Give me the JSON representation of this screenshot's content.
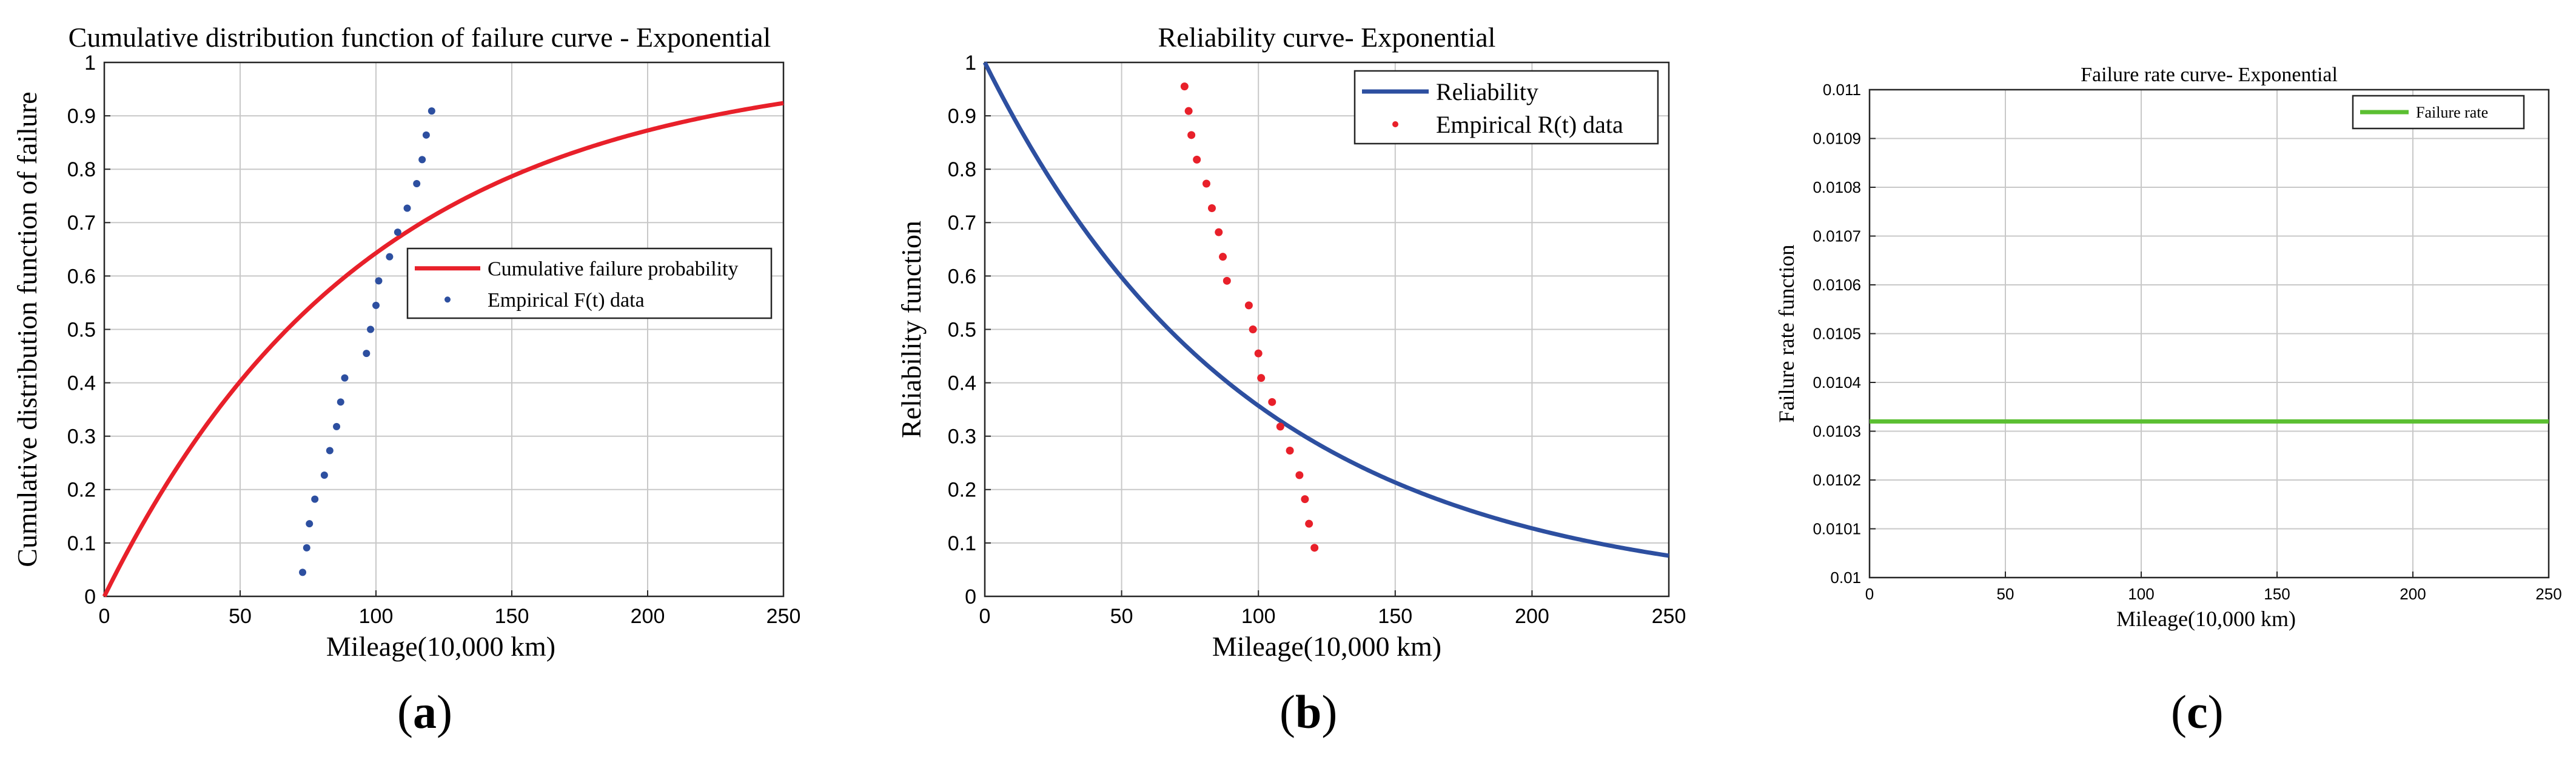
{
  "panels": [
    {
      "label_open": "(",
      "letter": "a",
      "label_close": ")"
    },
    {
      "label_open": "(",
      "letter": "b",
      "label_close": ")"
    },
    {
      "label_open": "(",
      "letter": "c",
      "label_close": ")"
    }
  ],
  "chart_data": [
    {
      "type": "line",
      "title": "Cumulative distribution function of failure curve - Exponential",
      "xlabel": "Mileage(10,000 km)",
      "ylabel": "Cumulative distribution function of failure",
      "xlim": [
        0,
        250
      ],
      "ylim": [
        0,
        1
      ],
      "xticks": [
        0,
        50,
        100,
        150,
        200,
        250
      ],
      "yticks": [
        0,
        0.1,
        0.2,
        0.3,
        0.4,
        0.5,
        0.6,
        0.7,
        0.8,
        0.9,
        1
      ],
      "grid": true,
      "legend_position": "right-middle",
      "curve": {
        "name": "Cumulative failure probability",
        "color": "#e8202a",
        "model": "1-exp(-lambda*x)",
        "lambda": 0.0103
      },
      "scatter": {
        "name": "Empirical F(t) data",
        "color": "#2d4fa0",
        "x": [
          73,
          74.5,
          75.5,
          77.5,
          81,
          83,
          85.5,
          87,
          88.5,
          96.5,
          98,
          100,
          101,
          105,
          108,
          111.5,
          115,
          117,
          118.5,
          120.5
        ],
        "y": [
          0.045,
          0.091,
          0.136,
          0.182,
          0.227,
          0.273,
          0.318,
          0.364,
          0.409,
          0.455,
          0.5,
          0.545,
          0.591,
          0.636,
          0.682,
          0.727,
          0.773,
          0.818,
          0.864,
          0.909
        ]
      }
    },
    {
      "type": "line",
      "title": "Reliability curve- Exponential",
      "xlabel": "Mileage(10,000 km)",
      "ylabel": "Reliability function",
      "xlim": [
        0,
        250
      ],
      "ylim": [
        0,
        1
      ],
      "xticks": [
        0,
        50,
        100,
        150,
        200,
        250
      ],
      "yticks": [
        0,
        0.1,
        0.2,
        0.3,
        0.4,
        0.5,
        0.6,
        0.7,
        0.8,
        0.9,
        1
      ],
      "grid": true,
      "legend_position": "top-right",
      "curve": {
        "name": "Reliability",
        "color": "#2d4fa0",
        "model": "exp(-lambda*x)",
        "lambda": 0.0103
      },
      "scatter": {
        "name": "Empirical R(t) data",
        "color": "#e8202a",
        "x": [
          73,
          74.5,
          75.5,
          77.5,
          81,
          83,
          85.5,
          87,
          88.5,
          96.5,
          98,
          100,
          101,
          105,
          108,
          111.5,
          115,
          117,
          118.5,
          120.5
        ],
        "y": [
          0.955,
          0.909,
          0.864,
          0.818,
          0.773,
          0.727,
          0.682,
          0.636,
          0.591,
          0.545,
          0.5,
          0.455,
          0.409,
          0.364,
          0.318,
          0.273,
          0.227,
          0.182,
          0.136,
          0.091
        ]
      }
    },
    {
      "type": "line",
      "title": "Failure rate curve- Exponential",
      "xlabel": "Mileage(10,000 km)",
      "ylabel": "Failure rate function",
      "xlim": [
        0,
        250
      ],
      "ylim": [
        0.01,
        0.011
      ],
      "xticks": [
        0,
        50,
        100,
        150,
        200,
        250
      ],
      "yticks": [
        0.01,
        0.0101,
        0.0102,
        0.0103,
        0.0104,
        0.0105,
        0.0106,
        0.0107,
        0.0108,
        0.0109,
        0.011
      ],
      "grid": true,
      "legend_position": "top-right",
      "curve": {
        "name": "Failure rate",
        "color": "#5bbf32",
        "model": "constant",
        "value": 0.01032
      }
    }
  ]
}
